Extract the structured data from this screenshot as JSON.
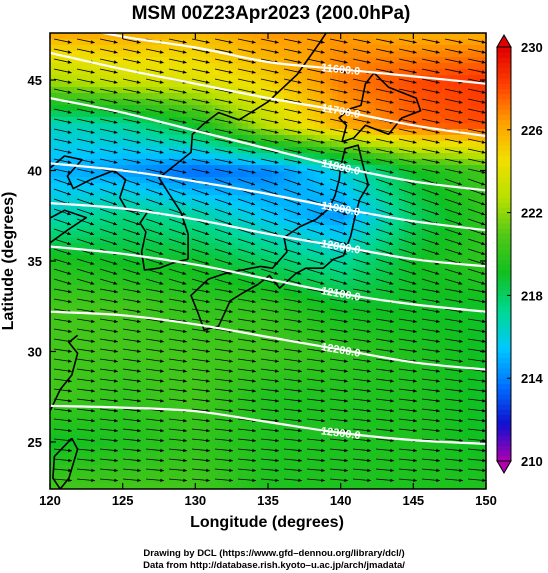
{
  "chart_data": {
    "type": "heatmap",
    "title": "MSM 00Z23Apr2023 (200.0hPa)",
    "xlabel": "Longitude (degrees)",
    "ylabel": "Latitude  (degrees)",
    "xlim": [
      120,
      150
    ],
    "ylim": [
      22.4,
      47.6
    ],
    "x_ticks": [
      120,
      125,
      130,
      135,
      140,
      145,
      150
    ],
    "x_tick_labels": [
      "120",
      "125",
      "130",
      "135",
      "140",
      "145",
      "150"
    ],
    "y_ticks": [
      25,
      30,
      35,
      40,
      45
    ],
    "y_tick_labels": [
      "25",
      "30",
      "35",
      "40",
      "45"
    ],
    "colorbar": {
      "min": 210,
      "max": 230,
      "ticks": [
        210,
        214,
        218,
        222,
        226,
        230
      ],
      "tick_labels": [
        "210",
        "214",
        "218",
        "222",
        "226",
        "230"
      ],
      "colors": [
        "#b000b0",
        "#1010d0",
        "#0070ff",
        "#00c8ff",
        "#00d890",
        "#10c020",
        "#50c818",
        "#b8e000",
        "#f0e000",
        "#ffa000",
        "#ff4000",
        "#e00000"
      ]
    },
    "temperature_field": {
      "lon": [
        120,
        125,
        130,
        135,
        140,
        145,
        150
      ],
      "lat": [
        22.5,
        25,
        27.5,
        30,
        32.5,
        35,
        37.5,
        40,
        42.5,
        45,
        47.5
      ],
      "values": [
        [
          220.5,
          220.5,
          220.5,
          219.5,
          219.5,
          219.5,
          219.5
        ],
        [
          219.0,
          219.5,
          220.0,
          219.5,
          219.5,
          219.5,
          219.0
        ],
        [
          220.5,
          220.0,
          220.5,
          219.5,
          219.5,
          219.5,
          219.0
        ],
        [
          220.5,
          220.5,
          220.5,
          220.5,
          220.0,
          219.5,
          219.0
        ],
        [
          220.5,
          220.5,
          220.0,
          220.0,
          219.0,
          219.0,
          219.0
        ],
        [
          219.5,
          219.0,
          219.0,
          218.0,
          217.0,
          219.0,
          220.0
        ],
        [
          216.5,
          217.5,
          217.0,
          215.5,
          214.5,
          218.0,
          220.0
        ],
        [
          215.0,
          214.5,
          213.5,
          214.0,
          216.0,
          219.0,
          220.5
        ],
        [
          216.5,
          217.0,
          219.0,
          223.0,
          226.0,
          227.5,
          228.0
        ],
        [
          222.5,
          223.5,
          224.0,
          225.0,
          227.0,
          228.0,
          228.5
        ],
        [
          226.0,
          226.0,
          225.5,
          226.5,
          226.5,
          226.0,
          226.0
        ]
      ]
    },
    "height_contours": [
      {
        "label": "11600.0",
        "points": [
          [
            120,
            48.2
          ],
          [
            125,
            47.4
          ],
          [
            130,
            46.8
          ],
          [
            135,
            46.0
          ],
          [
            140,
            45.6
          ],
          [
            145,
            45.2
          ],
          [
            150,
            44.8
          ]
        ]
      },
      {
        "label": "11700.0",
        "points": [
          [
            120,
            46.5
          ],
          [
            125,
            45.6
          ],
          [
            130,
            44.8
          ],
          [
            135,
            44.0
          ],
          [
            140,
            43.3
          ],
          [
            145,
            42.5
          ],
          [
            150,
            41.9
          ]
        ]
      },
      {
        "label": "11800.0",
        "points": [
          [
            120,
            44.0
          ],
          [
            125,
            43.2
          ],
          [
            130,
            42.2
          ],
          [
            135,
            41.2
          ],
          [
            140,
            40.2
          ],
          [
            145,
            39.4
          ],
          [
            150,
            38.9
          ]
        ]
      },
      {
        "label": "11900.0",
        "points": [
          [
            120,
            40.4
          ],
          [
            125,
            40.0
          ],
          [
            130,
            39.4
          ],
          [
            135,
            38.7
          ],
          [
            140,
            37.9
          ],
          [
            145,
            37.2
          ],
          [
            150,
            36.7
          ]
        ]
      },
      {
        "label": "12000.0",
        "points": [
          [
            120,
            38.2
          ],
          [
            125,
            37.9
          ],
          [
            130,
            37.3
          ],
          [
            135,
            36.5
          ],
          [
            140,
            35.8
          ],
          [
            145,
            35.1
          ],
          [
            150,
            34.7
          ]
        ]
      },
      {
        "label": "12100.0",
        "points": [
          [
            120,
            35.8
          ],
          [
            125,
            35.4
          ],
          [
            130,
            34.8
          ],
          [
            135,
            34.0
          ],
          [
            140,
            33.2
          ],
          [
            145,
            32.6
          ],
          [
            150,
            32.2
          ]
        ]
      },
      {
        "label": "12200.0",
        "points": [
          [
            120,
            32.2
          ],
          [
            125,
            32.0
          ],
          [
            130,
            31.5
          ],
          [
            135,
            30.8
          ],
          [
            140,
            30.1
          ],
          [
            145,
            29.4
          ],
          [
            150,
            29.0
          ]
        ]
      },
      {
        "label": "12300.0",
        "points": [
          [
            120,
            27.0
          ],
          [
            125,
            26.9
          ],
          [
            130,
            26.7
          ],
          [
            135,
            26.1
          ],
          [
            140,
            25.5
          ],
          [
            145,
            25.1
          ],
          [
            150,
            24.9
          ]
        ]
      }
    ]
  },
  "credits": {
    "line1": "Drawing by DCL (https://www.gfd–dennou.org/library/dcl/)",
    "line2": "Data from http://database.rish.kyoto–u.ac.jp/arch/jmadata/"
  }
}
